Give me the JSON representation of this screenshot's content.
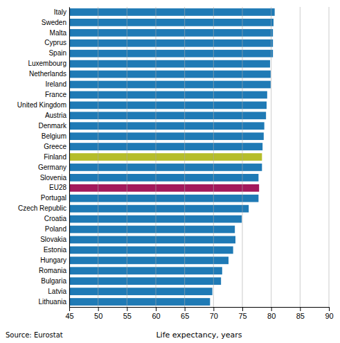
{
  "chart_data": {
    "type": "bar",
    "orientation": "horizontal",
    "categories": [
      "Italy",
      "Sweden",
      "Malta",
      "Cyprus",
      "Spain",
      "Luxembourg",
      "Netherlands",
      "Ireland",
      "France",
      "United Kingdom",
      "Austria",
      "Denmark",
      "Belgium",
      "Greece",
      "Finland",
      "Germany",
      "Slovenia",
      "EU28",
      "Portugal",
      "Czech Republic",
      "Croatia",
      "Poland",
      "Slovakia",
      "Estonia",
      "Hungary",
      "Romania",
      "Bulgaria",
      "Latvia",
      "Lithuania"
    ],
    "values": [
      80.6,
      80.4,
      80.3,
      80.3,
      80.3,
      79.8,
      79.9,
      79.9,
      79.3,
      79.2,
      79.1,
      78.8,
      78.7,
      78.5,
      78.4,
      78.4,
      77.8,
      77.9,
      77.8,
      76.1,
      74.9,
      73.7,
      73.8,
      73.4,
      72.6,
      71.5,
      71.3,
      69.8,
      69.4
    ],
    "colors": [
      "#1f7ab5",
      "#1f7ab5",
      "#1f7ab5",
      "#1f7ab5",
      "#1f7ab5",
      "#1f7ab5",
      "#1f7ab5",
      "#1f7ab5",
      "#1f7ab5",
      "#1f7ab5",
      "#1f7ab5",
      "#1f7ab5",
      "#1f7ab5",
      "#1f7ab5",
      "#b5bd2b",
      "#1f7ab5",
      "#1f7ab5",
      "#a3195b",
      "#1f7ab5",
      "#1f7ab5",
      "#1f7ab5",
      "#1f7ab5",
      "#1f7ab5",
      "#1f7ab5",
      "#1f7ab5",
      "#1f7ab5",
      "#1f7ab5",
      "#1f7ab5",
      "#1f7ab5"
    ],
    "xlabel": "Life expectancy, years",
    "annotations": [
      "Source: Eurostat"
    ],
    "xlim": [
      45,
      90
    ],
    "xticks": [
      45,
      50,
      55,
      60,
      65,
      70,
      75,
      80,
      85,
      90
    ],
    "grid": true
  }
}
